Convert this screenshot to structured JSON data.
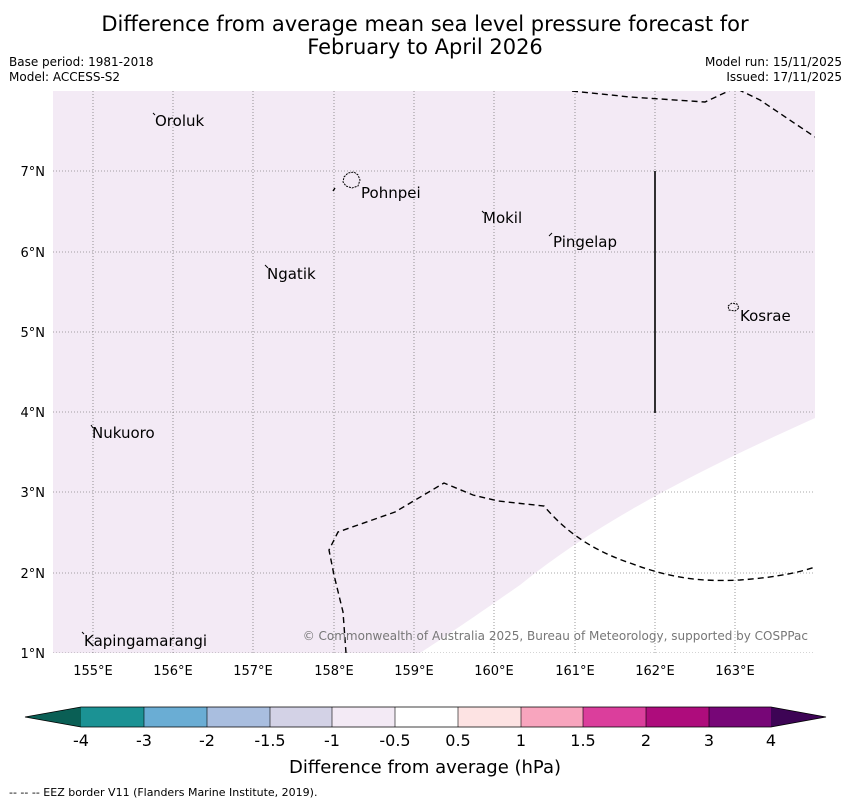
{
  "title": {
    "line1": "Difference from average mean sea level pressure forecast for",
    "line2": "February to April 2026"
  },
  "meta": {
    "base_period": "Base period: 1981-2018",
    "model": "Model: ACCESS-S2",
    "model_run": "Model run: 15/11/2025",
    "issued": "Issued: 17/11/2025"
  },
  "map": {
    "lon_ticks": [
      "155°E",
      "156°E",
      "157°E",
      "158°E",
      "159°E",
      "160°E",
      "161°E",
      "162°E",
      "163°E"
    ],
    "lat_ticks": [
      "7°N",
      "6°N",
      "5°N",
      "4°N",
      "3°N",
      "2°N",
      "1°N"
    ],
    "fill_color": "#f3eaf5",
    "places": [
      {
        "name": "Oroluk"
      },
      {
        "name": "Pohnpei"
      },
      {
        "name": "Mokil"
      },
      {
        "name": "Pingelap"
      },
      {
        "name": "Ngatik"
      },
      {
        "name": "Kosrae"
      },
      {
        "name": "Nukuoro"
      },
      {
        "name": "Kapingamarangi"
      }
    ],
    "copyright": "© Commonwealth of Australia 2025, Bureau of Meteorology, supported by COSPPac"
  },
  "colorbar": {
    "labels": [
      "-4",
      "-3",
      "-2",
      "-1.5",
      "-1",
      "-0.5",
      "0.5",
      "1",
      "1.5",
      "2",
      "3",
      "4"
    ],
    "colors": [
      "#1b9294",
      "#6aadd4",
      "#a9bedf",
      "#d3d2e6",
      "#f3eaf5",
      "#ffffff",
      "#fde3e3",
      "#f8a5be",
      "#db3e9c",
      "#ae0c7c",
      "#770677"
    ],
    "under_color": "#0a5f55",
    "over_color": "#3d0455",
    "label": "Difference from average (hPa)"
  },
  "footnote": "--  --  -- EEZ border V11 (Flanders Marine Institute, 2019)."
}
